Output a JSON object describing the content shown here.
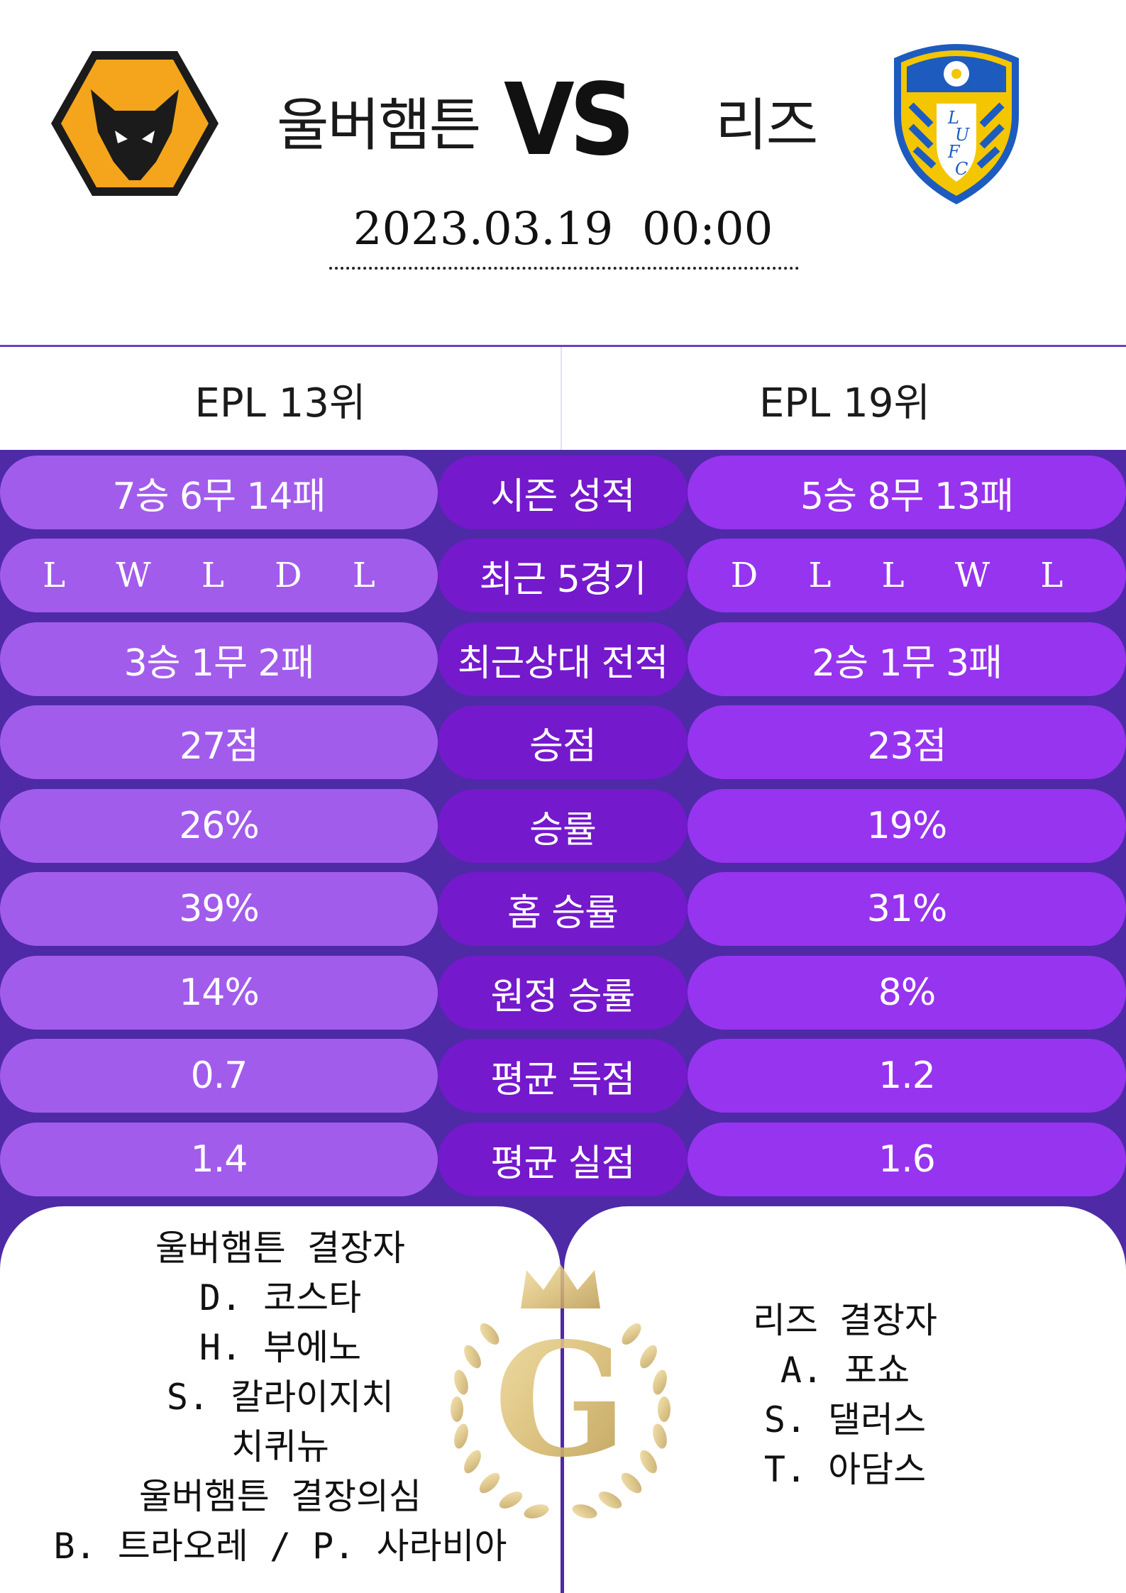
{
  "header": {
    "home_team": "울버햄튼",
    "vs": "VS",
    "away_team": "리즈",
    "date": "2023.03.19  00:00",
    "home_logo": "wolves-crest-icon",
    "away_logo": "leeds-crest-icon"
  },
  "ranks": {
    "home": "EPL 13위",
    "away": "EPL 19위"
  },
  "stats": [
    {
      "home": "7승 6무 14패",
      "label": "시즌 성적",
      "away": "5승 8무 13패"
    },
    {
      "home": "L W L D L",
      "label": "최근 5경기",
      "away": "D L L W L"
    },
    {
      "home": "3승 1무 2패",
      "label": "최근상대 전적",
      "away": "2승 1무 3패"
    },
    {
      "home": "27점",
      "label": "승점",
      "away": "23점"
    },
    {
      "home": "26%",
      "label": "승률",
      "away": "19%"
    },
    {
      "home": "39%",
      "label": "홈 승률",
      "away": "31%"
    },
    {
      "home": "14%",
      "label": "원정 승률",
      "away": "8%"
    },
    {
      "home": "0.7",
      "label": "평균 득점",
      "away": "1.2"
    },
    {
      "home": "1.4",
      "label": "평균 실점",
      "away": "1.6"
    }
  ],
  "absentees": {
    "home": [
      "울버햄튼 결장자",
      "D. 코스타",
      "H. 부에노",
      "S. 칼라이지치",
      "치퀴뉴",
      "울버햄튼 결장의심",
      "B. 트라오레 / P. 사라비아"
    ],
    "away": [
      "리즈 결장자",
      "A. 포쇼",
      "S. 댈러스",
      "T. 아담스"
    ]
  },
  "emblem": {
    "letter": "G",
    "icon": "crown-laurel-icon"
  },
  "colors": {
    "background": "#4e2aa6",
    "home_pill": "#a25cec",
    "label_pill": "#7419cc",
    "away_pill": "#9734ef",
    "gold": "#d9bd74"
  }
}
